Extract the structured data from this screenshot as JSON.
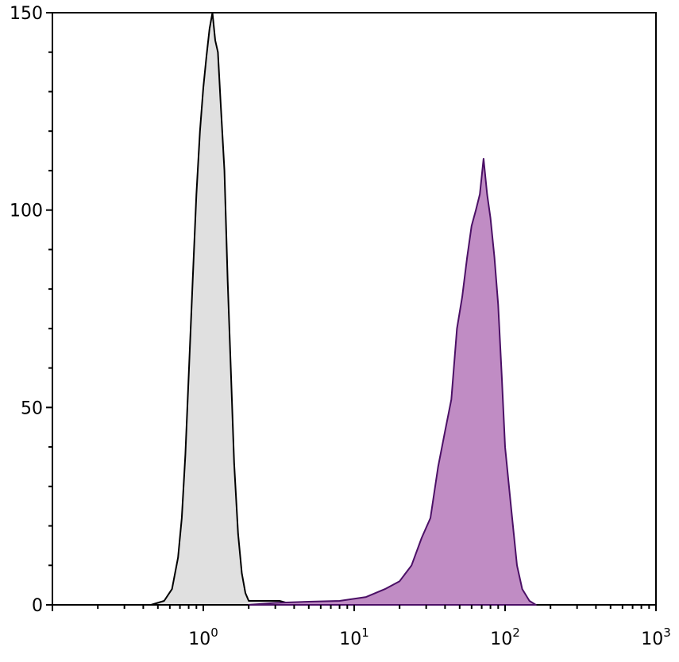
{
  "chart_data": {
    "type": "area",
    "title": "",
    "xlabel": "",
    "ylabel": "",
    "xscale": "log",
    "xlim": [
      0.1,
      1000
    ],
    "ylim": [
      0,
      150
    ],
    "grid": false,
    "x_ticks": [
      {
        "base": "10",
        "exp": "0",
        "value": 1
      },
      {
        "base": "10",
        "exp": "1",
        "value": 10
      },
      {
        "base": "10",
        "exp": "2",
        "value": 100
      },
      {
        "base": "10",
        "exp": "3",
        "value": 1000
      }
    ],
    "y_ticks": [
      {
        "label": "0",
        "value": 0
      },
      {
        "label": "50",
        "value": 50
      },
      {
        "label": "100",
        "value": 100
      },
      {
        "label": "150",
        "value": 150
      }
    ],
    "series": [
      {
        "color_fill": "#e0e0e0",
        "color_line": "#000000",
        "x": [
          0.45,
          0.55,
          0.62,
          0.68,
          0.72,
          0.76,
          0.8,
          0.85,
          0.9,
          0.95,
          1.0,
          1.05,
          1.1,
          1.15,
          1.2,
          1.25,
          1.3,
          1.38,
          1.45,
          1.52,
          1.6,
          1.7,
          1.8,
          1.9,
          2.0,
          2.2,
          2.6,
          3.2,
          4.0
        ],
        "y": [
          0,
          1,
          4,
          12,
          22,
          38,
          58,
          82,
          104,
          120,
          131,
          139,
          146,
          150,
          143,
          140,
          128,
          110,
          82,
          60,
          36,
          18,
          8,
          3,
          1,
          1,
          1,
          1,
          0
        ]
      },
      {
        "color_fill": "#c08cc4",
        "color_line": "#4b1066",
        "x": [
          2.0,
          3.0,
          5.0,
          8.0,
          12.0,
          16.0,
          20.0,
          24.0,
          28.0,
          32.0,
          36.0,
          40.0,
          44.0,
          48.0,
          52.0,
          56.0,
          60.0,
          64.0,
          68.0,
          72.0,
          76.0,
          80.0,
          85.0,
          90.0,
          95.0,
          100.0,
          110.0,
          120.0,
          130.0,
          145.0,
          160.0
        ],
        "y": [
          0,
          0.5,
          0.8,
          1,
          2,
          4,
          6,
          10,
          17,
          22,
          35,
          44,
          52,
          70,
          78,
          88,
          96,
          100,
          104,
          113,
          104,
          98,
          88,
          76,
          58,
          40,
          24,
          10,
          4,
          1,
          0
        ]
      }
    ]
  }
}
